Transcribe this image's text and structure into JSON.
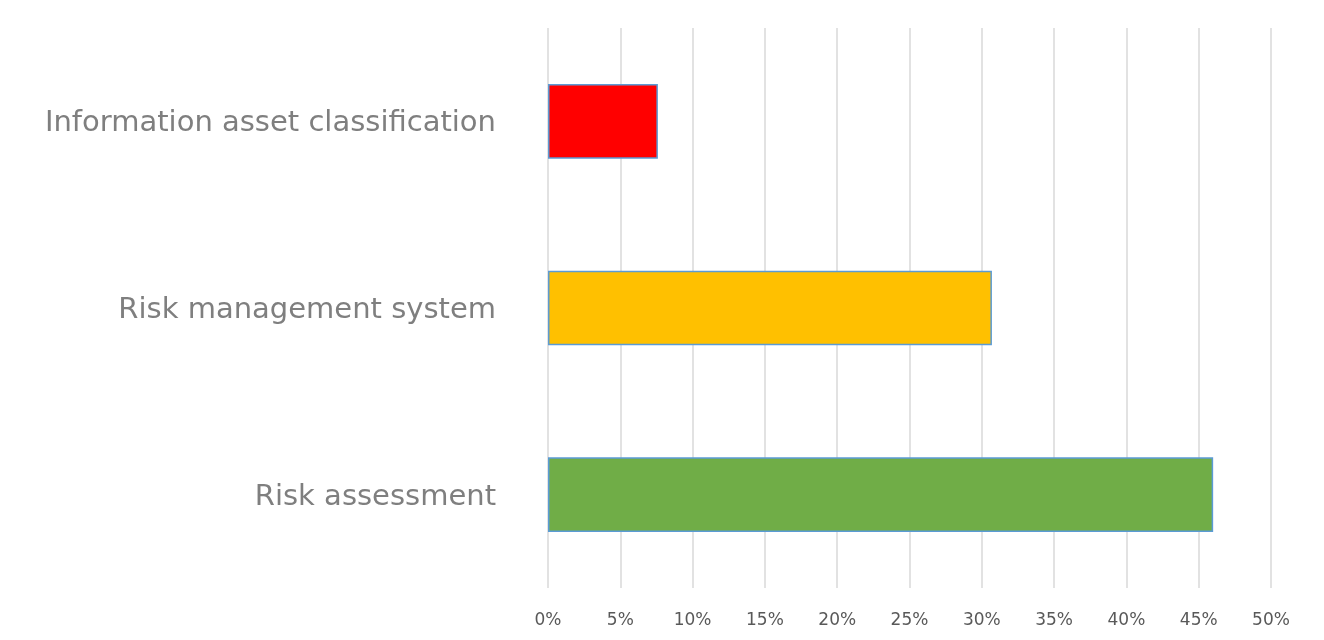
{
  "chart_data": {
    "type": "bar",
    "orientation": "horizontal",
    "categories": [
      "Information asset classification",
      "Risk management system",
      "Risk assessment"
    ],
    "values": [
      7.6,
      30.7,
      46
    ],
    "colors": [
      "#ff0000",
      "#ffc000",
      "#70ad47"
    ],
    "xlim": [
      0,
      50
    ],
    "xticks": [
      {
        "value": 0,
        "label": "0%"
      },
      {
        "value": 5,
        "label": "5%"
      },
      {
        "value": 10,
        "label": "10%"
      },
      {
        "value": 15,
        "label": "15%"
      },
      {
        "value": 20,
        "label": "20%"
      },
      {
        "value": 25,
        "label": "25%"
      },
      {
        "value": 30,
        "label": "30%"
      },
      {
        "value": 35,
        "label": "35%"
      },
      {
        "value": 40,
        "label": "40%"
      },
      {
        "value": 45,
        "label": "45%"
      },
      {
        "value": 50,
        "label": "50%"
      }
    ],
    "grid": "x"
  }
}
